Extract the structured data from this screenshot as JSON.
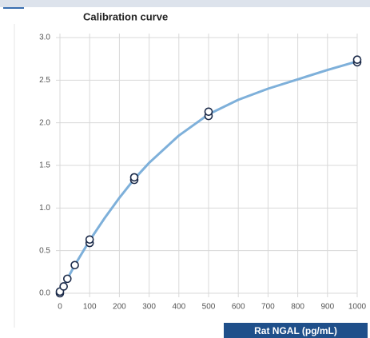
{
  "chart_data": {
    "type": "scatter",
    "title": "Calibration curve",
    "x_label": "Rat NGAL (pg/mL)",
    "x": [
      0,
      0,
      12.5,
      25,
      50,
      100,
      100,
      250,
      250,
      500,
      500,
      1000,
      1000
    ],
    "values": [
      0.0,
      0.02,
      0.08,
      0.17,
      0.33,
      0.59,
      0.63,
      1.33,
      1.36,
      2.08,
      2.13,
      2.71,
      2.74
    ],
    "marker_color": "#1c2b4a",
    "fit_curve": {
      "color": "#7eb0da",
      "x": [
        0,
        25,
        50,
        100,
        150,
        200,
        250,
        300,
        400,
        500,
        600,
        700,
        800,
        900,
        1000
      ],
      "values": [
        0,
        0.17,
        0.33,
        0.62,
        0.88,
        1.12,
        1.34,
        1.53,
        1.85,
        2.1,
        2.27,
        2.4,
        2.51,
        2.62,
        2.72
      ]
    },
    "xlim": [
      0,
      1000
    ],
    "xticks": [
      0,
      100,
      200,
      300,
      400,
      500,
      600,
      700,
      800,
      900,
      1000
    ],
    "ylim": [
      0,
      3
    ],
    "yticks": [
      {
        "value": 0,
        "label": "0.0"
      },
      0.5,
      {
        "value": 1,
        "label": "1.0"
      },
      1.5,
      {
        "value": 2,
        "label": "2.0"
      },
      2.5,
      {
        "value": 3,
        "label": "3.0"
      }
    ],
    "grid": true
  }
}
